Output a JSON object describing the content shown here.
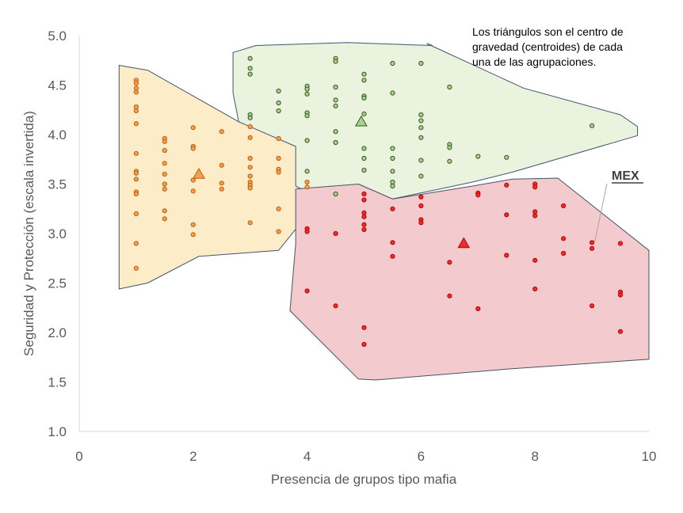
{
  "annotation_lines": [
    "Los triángulos son el centro de",
    "gravedad (centroides) de cada",
    "una de las  agrupaciones."
  ],
  "chart_data": {
    "type": "scatter",
    "xlabel": "Presencia de grupos tipo mafia",
    "ylabel": "Seguridad y Protección (escala invertida)",
    "xlim": [
      0,
      10
    ],
    "ylim": [
      1.0,
      5.0
    ],
    "x_ticks": [
      "0",
      "2",
      "4",
      "6",
      "8",
      "10"
    ],
    "y_ticks": [
      "1.0",
      "1.5",
      "2.0",
      "2.5",
      "3.0",
      "3.5",
      "4.0",
      "4.5",
      "5.0"
    ],
    "grid": false,
    "clusters": [
      {
        "hull": [
          [
            0.7,
            4.7
          ],
          [
            1.2,
            4.65
          ],
          [
            2.8,
            4.13
          ],
          [
            3.8,
            3.9
          ],
          [
            4.2,
            3.33
          ],
          [
            3.5,
            2.83
          ],
          [
            2.1,
            2.77
          ],
          [
            1.2,
            2.5
          ],
          [
            0.7,
            2.44
          ]
        ],
        "fill": "#fcedc8",
        "stroke": "#44546a",
        "marker_color": "#f0a34a",
        "marker_stroke": "#c55a11",
        "centroid": [
          2.1,
          3.6
        ],
        "points": [
          [
            1,
            4.55
          ],
          [
            1,
            4.52
          ],
          [
            1,
            4.47
          ],
          [
            1,
            4.43
          ],
          [
            1,
            4.28
          ],
          [
            1,
            4.24
          ],
          [
            1,
            4.11
          ],
          [
            1,
            3.81
          ],
          [
            1,
            3.63
          ],
          [
            1,
            3.61
          ],
          [
            1,
            3.55
          ],
          [
            1,
            3.42
          ],
          [
            1,
            3.4
          ],
          [
            1,
            3.2
          ],
          [
            1,
            2.9
          ],
          [
            1,
            2.65
          ],
          [
            1.5,
            3.96
          ],
          [
            1.5,
            3.93
          ],
          [
            1.5,
            3.84
          ],
          [
            1.5,
            3.71
          ],
          [
            1.5,
            3.6
          ],
          [
            1.5,
            3.5
          ],
          [
            1.5,
            3.45
          ],
          [
            1.5,
            3.23
          ],
          [
            1.5,
            3.15
          ],
          [
            2,
            4.07
          ],
          [
            2,
            3.88
          ],
          [
            2,
            3.86
          ],
          [
            2,
            3.54
          ],
          [
            2,
            3.43
          ],
          [
            2,
            3.09
          ],
          [
            2,
            2.99
          ],
          [
            2.5,
            4.03
          ],
          [
            2.5,
            3.69
          ],
          [
            2.5,
            3.51
          ],
          [
            2.5,
            3.45
          ],
          [
            3,
            4.08
          ],
          [
            3,
            3.97
          ],
          [
            3,
            3.76
          ],
          [
            3,
            3.67
          ],
          [
            3,
            3.58
          ],
          [
            3,
            3.52
          ],
          [
            3,
            3.49
          ],
          [
            3,
            3.46
          ],
          [
            3,
            3.11
          ],
          [
            3.5,
            3.96
          ],
          [
            3.5,
            3.76
          ],
          [
            3.5,
            3.65
          ],
          [
            3.5,
            3.62
          ],
          [
            3.5,
            3.25
          ],
          [
            3.5,
            3.02
          ],
          [
            4,
            3.52
          ],
          [
            4,
            3.47
          ]
        ]
      },
      {
        "hull": [
          [
            2.7,
            4.83
          ],
          [
            3.1,
            4.9
          ],
          [
            4.7,
            4.93
          ],
          [
            6.2,
            4.9
          ],
          [
            6.1,
            4.92
          ],
          [
            7.8,
            4.47
          ],
          [
            9.5,
            4.2
          ],
          [
            9.8,
            4.08
          ],
          [
            9.8,
            3.99
          ],
          [
            7.6,
            3.62
          ],
          [
            6.9,
            3.52
          ],
          [
            5.5,
            3.35
          ],
          [
            4.9,
            3.5
          ],
          [
            4.5,
            3.27
          ],
          [
            3.8,
            3.48
          ],
          [
            3.8,
            3.88
          ],
          [
            2.8,
            4.13
          ],
          [
            2.7,
            4.42
          ]
        ],
        "fill": "#e9f3de",
        "stroke": "#44546a",
        "marker_color": "#a9d18e",
        "marker_stroke": "#385723",
        "centroid": [
          4.95,
          4.13
        ],
        "points": [
          [
            3,
            4.77
          ],
          [
            3,
            4.67
          ],
          [
            3,
            4.61
          ],
          [
            3,
            4.2
          ],
          [
            3,
            4.17
          ],
          [
            3.5,
            4.44
          ],
          [
            3.5,
            4.32
          ],
          [
            3.5,
            4.24
          ],
          [
            4,
            4.49
          ],
          [
            4,
            4.46
          ],
          [
            4,
            4.41
          ],
          [
            4,
            4.22
          ],
          [
            4,
            4.19
          ],
          [
            4,
            3.94
          ],
          [
            4,
            3.63
          ],
          [
            4.5,
            4.77
          ],
          [
            4.5,
            4.74
          ],
          [
            4.5,
            4.48
          ],
          [
            4.5,
            4.35
          ],
          [
            4.5,
            4.29
          ],
          [
            4.5,
            4.03
          ],
          [
            4.5,
            3.92
          ],
          [
            4.5,
            3.4
          ],
          [
            5,
            4.61
          ],
          [
            5,
            4.55
          ],
          [
            5,
            4.39
          ],
          [
            5,
            4.37
          ],
          [
            5,
            4.21
          ],
          [
            5,
            3.86
          ],
          [
            5,
            3.76
          ],
          [
            5,
            3.64
          ],
          [
            5.5,
            4.72
          ],
          [
            5.5,
            4.42
          ],
          [
            5.5,
            3.86
          ],
          [
            5.5,
            3.76
          ],
          [
            5.5,
            3.63
          ],
          [
            5.5,
            3.52
          ],
          [
            5.5,
            3.48
          ],
          [
            6,
            4.72
          ],
          [
            6,
            4.2
          ],
          [
            6,
            4.14
          ],
          [
            6,
            4.07
          ],
          [
            6,
            3.97
          ],
          [
            6,
            3.74
          ],
          [
            6,
            3.58
          ],
          [
            6.5,
            4.48
          ],
          [
            6.5,
            3.9
          ],
          [
            6.5,
            3.87
          ],
          [
            6.5,
            3.73
          ],
          [
            7,
            3.78
          ],
          [
            7.5,
            3.77
          ],
          [
            9,
            4.09
          ]
        ]
      },
      {
        "hull": [
          [
            3.8,
            3.45
          ],
          [
            4.9,
            3.5
          ],
          [
            5.5,
            3.35
          ],
          [
            6.8,
            3.47
          ],
          [
            7.6,
            3.55
          ],
          [
            8.4,
            3.56
          ],
          [
            10,
            2.83
          ],
          [
            10,
            1.73
          ],
          [
            7.5,
            1.63
          ],
          [
            5.2,
            1.52
          ],
          [
            4.9,
            1.53
          ],
          [
            3.7,
            2.22
          ],
          [
            3.8,
            2.9
          ],
          [
            3.8,
            3.08
          ]
        ],
        "fill": "#f3cacd",
        "stroke": "#44546a",
        "marker_color": "#e1322f",
        "marker_stroke": "#c00000",
        "centroid": [
          6.75,
          2.9
        ],
        "points": [
          [
            4,
            3.05
          ],
          [
            4,
            3.02
          ],
          [
            4,
            2.42
          ],
          [
            4.5,
            3.0
          ],
          [
            4.5,
            2.27
          ],
          [
            5,
            3.4
          ],
          [
            5,
            3.34
          ],
          [
            5,
            3.21
          ],
          [
            5,
            3.17
          ],
          [
            5,
            3.09
          ],
          [
            5,
            3.04
          ],
          [
            5,
            2.05
          ],
          [
            5,
            1.88
          ],
          [
            5.5,
            3.25
          ],
          [
            5.5,
            2.91
          ],
          [
            5.5,
            2.77
          ],
          [
            6,
            3.37
          ],
          [
            6,
            3.28
          ],
          [
            6,
            3.14
          ],
          [
            6,
            3.11
          ],
          [
            6.5,
            2.71
          ],
          [
            6.5,
            2.37
          ],
          [
            7,
            3.41
          ],
          [
            7,
            3.39
          ],
          [
            7,
            2.24
          ],
          [
            7.5,
            3.49
          ],
          [
            7.5,
            3.19
          ],
          [
            7.5,
            2.78
          ],
          [
            8,
            3.5
          ],
          [
            8,
            3.47
          ],
          [
            8,
            3.22
          ],
          [
            8,
            3.18
          ],
          [
            8,
            2.73
          ],
          [
            8,
            2.44
          ],
          [
            8.5,
            3.28
          ],
          [
            8.5,
            2.95
          ],
          [
            8.5,
            2.8
          ],
          [
            9,
            2.91
          ],
          [
            9,
            2.85
          ],
          [
            9,
            2.27
          ],
          [
            9.5,
            2.9
          ],
          [
            9.5,
            2.41
          ],
          [
            9.5,
            2.38
          ],
          [
            9.5,
            2.01
          ]
        ]
      }
    ],
    "highlight": {
      "label": "MEX",
      "point": [
        9.0,
        2.87
      ]
    }
  }
}
